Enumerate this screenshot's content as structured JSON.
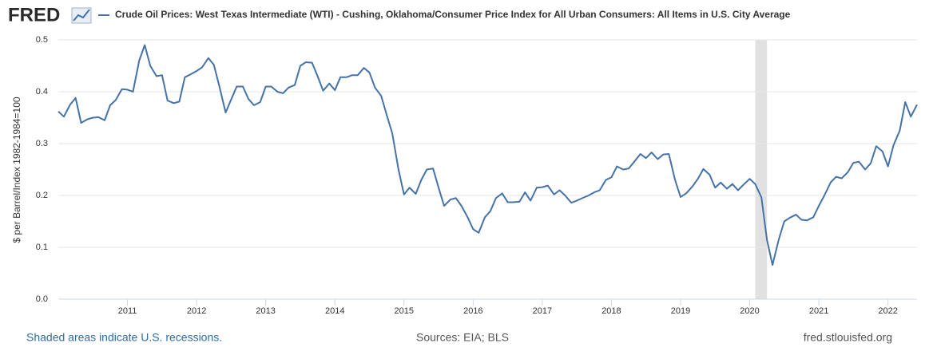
{
  "logo": "FRED",
  "chart_data": {
    "type": "line",
    "ylabel": "$ per Barrel/Index 1982-1984=100",
    "x": [
      2010.0,
      2010.08,
      2010.17,
      2010.25,
      2010.33,
      2010.42,
      2010.5,
      2010.58,
      2010.67,
      2010.75,
      2010.83,
      2010.92,
      2011.0,
      2011.08,
      2011.17,
      2011.25,
      2011.33,
      2011.42,
      2011.5,
      2011.58,
      2011.67,
      2011.75,
      2011.83,
      2011.92,
      2012.0,
      2012.08,
      2012.17,
      2012.25,
      2012.33,
      2012.42,
      2012.5,
      2012.58,
      2012.67,
      2012.75,
      2012.83,
      2012.92,
      2013.0,
      2013.08,
      2013.17,
      2013.25,
      2013.33,
      2013.42,
      2013.5,
      2013.58,
      2013.67,
      2013.75,
      2013.83,
      2013.92,
      2014.0,
      2014.08,
      2014.17,
      2014.25,
      2014.33,
      2014.42,
      2014.5,
      2014.58,
      2014.67,
      2014.75,
      2014.83,
      2014.92,
      2015.0,
      2015.08,
      2015.17,
      2015.25,
      2015.33,
      2015.42,
      2015.5,
      2015.58,
      2015.67,
      2015.75,
      2015.83,
      2015.92,
      2016.0,
      2016.08,
      2016.17,
      2016.25,
      2016.33,
      2016.42,
      2016.5,
      2016.58,
      2016.67,
      2016.75,
      2016.83,
      2016.92,
      2017.0,
      2017.08,
      2017.17,
      2017.25,
      2017.33,
      2017.42,
      2017.5,
      2017.58,
      2017.67,
      2017.75,
      2017.83,
      2017.92,
      2018.0,
      2018.08,
      2018.17,
      2018.25,
      2018.33,
      2018.42,
      2018.5,
      2018.58,
      2018.67,
      2018.75,
      2018.83,
      2018.92,
      2019.0,
      2019.08,
      2019.17,
      2019.25,
      2019.33,
      2019.42,
      2019.5,
      2019.58,
      2019.67,
      2019.75,
      2019.83,
      2019.92,
      2020.0,
      2020.08,
      2020.17,
      2020.25,
      2020.33,
      2020.42,
      2020.5,
      2020.58,
      2020.67,
      2020.75,
      2020.83,
      2020.92,
      2021.0,
      2021.08,
      2021.17,
      2021.25,
      2021.33,
      2021.42,
      2021.5,
      2021.58,
      2021.67,
      2021.75,
      2021.83,
      2021.92,
      2022.0,
      2022.08,
      2022.17,
      2022.25,
      2022.33,
      2022.42
    ],
    "series": [
      {
        "name": "Crude Oil Prices: West Texas Intermediate (WTI) - Cushing, Oklahoma/Consumer Price Index for All Urban Consumers: All Items in U.S. City Average",
        "color": "#4572a7",
        "values": [
          0.362,
          0.352,
          0.375,
          0.388,
          0.34,
          0.347,
          0.35,
          0.351,
          0.345,
          0.374,
          0.384,
          0.405,
          0.404,
          0.4,
          0.46,
          0.49,
          0.45,
          0.43,
          0.432,
          0.383,
          0.378,
          0.381,
          0.428,
          0.434,
          0.44,
          0.447,
          0.465,
          0.452,
          0.41,
          0.36,
          0.385,
          0.41,
          0.41,
          0.386,
          0.374,
          0.38,
          0.41,
          0.41,
          0.4,
          0.397,
          0.408,
          0.413,
          0.45,
          0.457,
          0.456,
          0.43,
          0.402,
          0.416,
          0.403,
          0.428,
          0.428,
          0.432,
          0.432,
          0.446,
          0.437,
          0.408,
          0.392,
          0.355,
          0.32,
          0.25,
          0.202,
          0.215,
          0.203,
          0.23,
          0.25,
          0.252,
          0.215,
          0.18,
          0.192,
          0.195,
          0.18,
          0.158,
          0.135,
          0.128,
          0.158,
          0.17,
          0.195,
          0.204,
          0.187,
          0.187,
          0.188,
          0.206,
          0.19,
          0.215,
          0.216,
          0.219,
          0.202,
          0.21,
          0.2,
          0.186,
          0.19,
          0.195,
          0.2,
          0.206,
          0.21,
          0.23,
          0.235,
          0.256,
          0.25,
          0.252,
          0.265,
          0.28,
          0.272,
          0.283,
          0.27,
          0.279,
          0.28,
          0.23,
          0.197,
          0.204,
          0.217,
          0.232,
          0.251,
          0.24,
          0.215,
          0.225,
          0.213,
          0.222,
          0.21,
          0.222,
          0.232,
          0.222,
          0.196,
          0.114,
          0.066,
          0.115,
          0.15,
          0.157,
          0.163,
          0.153,
          0.152,
          0.158,
          0.18,
          0.2,
          0.225,
          0.236,
          0.233,
          0.245,
          0.263,
          0.265,
          0.25,
          0.262,
          0.295,
          0.285,
          0.256,
          0.297,
          0.325,
          0.38,
          0.352,
          0.375
        ]
      }
    ],
    "xlim": [
      2010,
      2022.42
    ],
    "xticks": [
      2011,
      2012,
      2013,
      2014,
      2015,
      2016,
      2017,
      2018,
      2019,
      2020,
      2021,
      2022
    ],
    "ylim": [
      0,
      0.5
    ],
    "yticks": [
      {
        "value": 0,
        "label": "0.0"
      },
      0.1,
      0.2,
      0.3,
      0.4,
      0.5
    ],
    "grid": true,
    "recessions": [
      {
        "start": 2020.08,
        "end": 2020.25
      }
    ],
    "recession_color": "#e1e1e1",
    "notes": {
      "left": "Shaded areas indicate U.S. recessions.",
      "center": "Sources: EIA; BLS",
      "right": "fred.stlouisfed.org"
    }
  }
}
